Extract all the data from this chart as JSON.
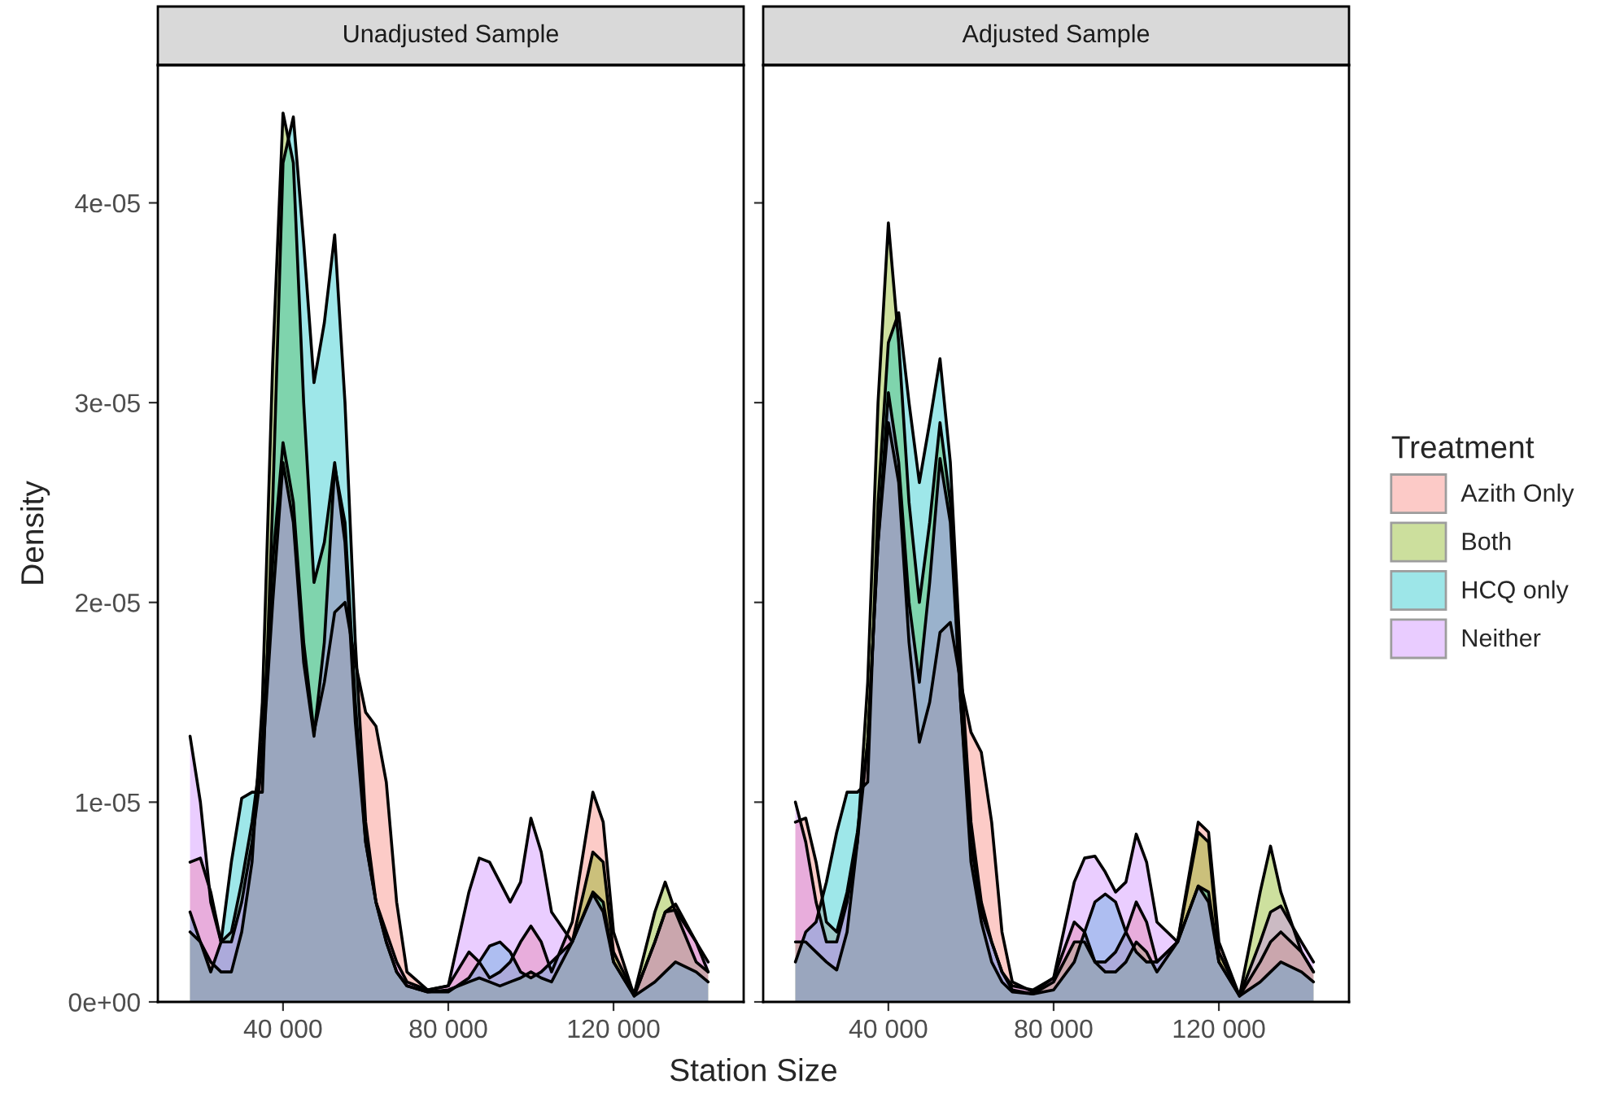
{
  "chart_data": [
    {
      "type": "area",
      "title": "Unadjusted Sample",
      "xlabel": "Station Size",
      "ylabel": "Density",
      "grid": false,
      "legend": "right",
      "legend_title": "Treatment",
      "x": [
        17500,
        20000,
        22500,
        25000,
        27500,
        30000,
        32500,
        35000,
        37500,
        40000,
        42500,
        45000,
        47500,
        50000,
        52500,
        55000,
        57500,
        60000,
        62500,
        65000,
        67500,
        70000,
        75000,
        80000,
        85000,
        87500,
        90000,
        92500,
        95000,
        97500,
        100000,
        102500,
        105000,
        110000,
        115000,
        117500,
        120000,
        125000,
        130000,
        132500,
        135000,
        140000,
        142900
      ],
      "xlim": [
        9700,
        151500
      ],
      "xticks": [
        {
          "value": 40000,
          "label": "40 000"
        },
        {
          "value": 80000,
          "label": "80 000"
        },
        {
          "value": 120000,
          "label": "120 000"
        }
      ],
      "ylim": [
        0,
        4.69e-05
      ],
      "yticks": [
        {
          "value": 0,
          "label": "0e+00"
        },
        {
          "value": 1e-05,
          "label": "1e-05"
        },
        {
          "value": 2e-05,
          "label": "2e-05"
        },
        {
          "value": 3e-05,
          "label": "3e-05"
        },
        {
          "value": 4e-05,
          "label": "4e-05"
        }
      ],
      "series": [
        {
          "name": "Azith Only",
          "color": "#f8766d",
          "values": [
            7e-06,
            7.2e-06,
            5.5e-06,
            3e-06,
            3.5e-06,
            6e-06,
            9e-06,
            1.3e-05,
            2.2e-05,
            2.8e-05,
            2.5e-05,
            1.8e-05,
            1.35e-05,
            1.6e-05,
            1.95e-05,
            2e-05,
            1.7e-05,
            1.45e-05,
            1.38e-05,
            1.1e-05,
            5e-06,
            1.5e-06,
            6e-07,
            8e-07,
            2.5e-06,
            2e-06,
            1.2e-06,
            1.5e-06,
            2e-06,
            3e-06,
            3.8e-06,
            3e-06,
            1.5e-06,
            4e-06,
            1.05e-05,
            9e-06,
            3.5e-06,
            3e-07,
            3e-06,
            4.5e-06,
            4.9e-06,
            3e-06,
            1.5e-06
          ]
        },
        {
          "name": "Both",
          "color": "#7cae00",
          "values": [
            3.5e-06,
            3e-06,
            2e-06,
            1.5e-06,
            1.5e-06,
            3.5e-06,
            7e-06,
            1.5e-05,
            3.2e-05,
            4.45e-05,
            4.2e-05,
            3e-05,
            2.1e-05,
            2.3e-05,
            2.7e-05,
            2.3e-05,
            1.4e-05,
            8e-06,
            5e-06,
            3e-06,
            1.5e-06,
            8e-07,
            5e-07,
            6e-07,
            1e-06,
            1.2e-06,
            1e-06,
            8e-07,
            1e-06,
            1.2e-06,
            1.5e-06,
            1.2e-06,
            1e-06,
            3e-06,
            7.5e-06,
            7e-06,
            2.5e-06,
            4e-07,
            4.5e-06,
            6e-06,
            4.5e-06,
            2e-06,
            1.5e-06
          ]
        },
        {
          "name": "HCQ only",
          "color": "#00bfc4",
          "values": [
            4.5e-06,
            3e-06,
            1.5e-06,
            3e-06,
            7e-06,
            1.02e-05,
            1.05e-05,
            1.05e-05,
            2.5e-05,
            4.2e-05,
            4.43e-05,
            3.8e-05,
            3.1e-05,
            3.4e-05,
            3.84e-05,
            3e-05,
            1.8e-05,
            9e-06,
            5e-06,
            3e-06,
            1.5e-06,
            8e-07,
            5e-07,
            5e-07,
            1.2e-06,
            2e-06,
            2.8e-06,
            3e-06,
            2.5e-06,
            1.5e-06,
            1.2e-06,
            1.5e-06,
            2e-06,
            3e-06,
            5.5e-06,
            5e-06,
            2e-06,
            3e-07,
            1e-06,
            1.5e-06,
            2e-06,
            1.5e-06,
            1e-06
          ]
        },
        {
          "name": "Neither",
          "color": "#c77cff",
          "values": [
            1.33e-05,
            1e-05,
            5e-06,
            3e-06,
            3e-06,
            5e-06,
            8e-06,
            1.2e-05,
            2e-05,
            2.7e-05,
            2.4e-05,
            1.7e-05,
            1.33e-05,
            1.8e-05,
            2.68e-05,
            2.4e-05,
            1.5e-05,
            8e-06,
            5e-06,
            3.5e-06,
            2e-06,
            1e-06,
            6e-07,
            8e-07,
            5.5e-06,
            7.2e-06,
            7e-06,
            6e-06,
            5e-06,
            6e-06,
            9.2e-06,
            7.5e-06,
            4.5e-06,
            3e-06,
            5.4e-06,
            4.5e-06,
            2e-06,
            3e-07,
            3e-06,
            4.5e-06,
            4.6e-06,
            3e-06,
            2e-06
          ]
        }
      ]
    },
    {
      "type": "area",
      "title": "Adjusted Sample",
      "grid": false,
      "legend": "right",
      "tick_labels": "x",
      "x": [
        17500,
        20000,
        22500,
        25000,
        27500,
        30000,
        32500,
        35000,
        37500,
        40000,
        42500,
        45000,
        47500,
        50000,
        52500,
        55000,
        57500,
        60000,
        62500,
        65000,
        67500,
        70000,
        75000,
        80000,
        85000,
        87500,
        90000,
        92500,
        95000,
        97500,
        100000,
        102500,
        105000,
        110000,
        115000,
        117500,
        120000,
        125000,
        130000,
        132500,
        135000,
        140000,
        142900
      ],
      "xlim": [
        9700,
        151500
      ],
      "xticks": [
        {
          "value": 40000,
          "label": "40 000"
        },
        {
          "value": 80000,
          "label": "80 000"
        },
        {
          "value": 120000,
          "label": "120 000"
        }
      ],
      "ylim": [
        0,
        4.69e-05
      ],
      "yticks": [
        {
          "value": 0,
          "label": null
        },
        {
          "value": 1e-05,
          "label": null
        },
        {
          "value": 2e-05,
          "label": null
        },
        {
          "value": 3e-05,
          "label": null
        },
        {
          "value": 4e-05,
          "label": null
        }
      ],
      "series": [
        {
          "name": "Azith Only",
          "color": "#f8766d",
          "values": [
            9e-06,
            9.2e-06,
            7e-06,
            4e-06,
            3.5e-06,
            5.5e-06,
            8.5e-06,
            1.3e-05,
            2.3e-05,
            2.9e-05,
            2.6e-05,
            1.8e-05,
            1.3e-05,
            1.5e-05,
            1.85e-05,
            1.9e-05,
            1.6e-05,
            1.35e-05,
            1.25e-05,
            9e-06,
            3.5e-06,
            1e-06,
            5e-07,
            1.2e-06,
            4e-06,
            3.5e-06,
            2e-06,
            2e-06,
            2.5e-06,
            3.5e-06,
            5e-06,
            4e-06,
            2e-06,
            3e-06,
            9e-06,
            8.5e-06,
            3e-06,
            3e-07,
            2e-06,
            3e-06,
            3.5e-06,
            2.5e-06,
            1.5e-06
          ]
        },
        {
          "name": "Both",
          "color": "#7cae00",
          "values": [
            3e-06,
            3e-06,
            2.5e-06,
            2e-06,
            1.6e-06,
            3.5e-06,
            8e-06,
            1.6e-05,
            3e-05,
            3.9e-05,
            3.3e-05,
            2.5e-05,
            2e-05,
            2.4e-05,
            2.9e-05,
            2.5e-05,
            1.5e-05,
            7e-06,
            4e-06,
            2e-06,
            1e-06,
            5e-07,
            4e-07,
            1e-06,
            3e-06,
            3e-06,
            2e-06,
            1.5e-06,
            1.5e-06,
            2e-06,
            3e-06,
            2.5e-06,
            1.5e-06,
            3e-06,
            8.5e-06,
            8e-06,
            2.5e-06,
            3e-07,
            5.5e-06,
            7.8e-06,
            5.5e-06,
            2.5e-06,
            1.5e-06
          ]
        },
        {
          "name": "HCQ only",
          "color": "#00bfc4",
          "values": [
            2e-06,
            3.5e-06,
            4e-06,
            6e-06,
            8.5e-06,
            1.05e-05,
            1.05e-05,
            1.1e-05,
            2.5e-05,
            3.3e-05,
            3.45e-05,
            3e-05,
            2.6e-05,
            2.9e-05,
            3.22e-05,
            2.7e-05,
            1.7e-05,
            9e-06,
            5e-06,
            3e-06,
            1.5e-06,
            6e-07,
            4e-07,
            6e-07,
            2e-06,
            3.5e-06,
            5e-06,
            5.4e-06,
            5e-06,
            3.5e-06,
            2.5e-06,
            2e-06,
            2e-06,
            3e-06,
            5.8e-06,
            5.5e-06,
            2e-06,
            3e-07,
            1e-06,
            1.5e-06,
            2e-06,
            1.5e-06,
            1e-06
          ]
        },
        {
          "name": "Neither",
          "color": "#c77cff",
          "values": [
            1e-05,
            8e-06,
            5e-06,
            3e-06,
            3e-06,
            5e-06,
            8e-06,
            1.3e-05,
            2.3e-05,
            3.05e-05,
            2.7e-05,
            2e-05,
            1.6e-05,
            2.1e-05,
            2.72e-05,
            2.4e-05,
            1.5e-05,
            8e-06,
            4.5e-06,
            3e-06,
            1.5e-06,
            8e-07,
            6e-07,
            1.2e-06,
            6e-06,
            7.2e-06,
            7.3e-06,
            6.5e-06,
            5.5e-06,
            6e-06,
            8.4e-06,
            7e-06,
            4e-06,
            3e-06,
            5.8e-06,
            5e-06,
            2e-06,
            3e-07,
            3e-06,
            4.5e-06,
            4.8e-06,
            3e-06,
            2e-06
          ]
        }
      ]
    }
  ]
}
